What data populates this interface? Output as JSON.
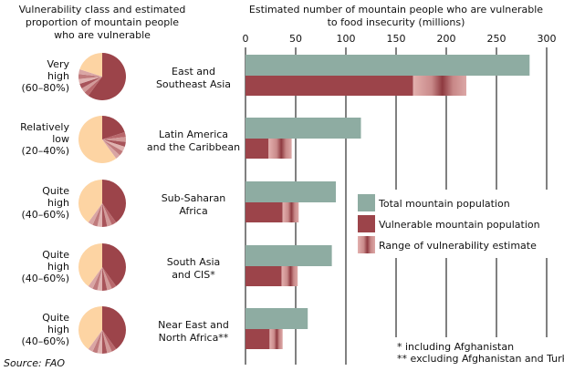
{
  "chart_data": {
    "type": "bar",
    "title_left": [
      "Vulnerability class and estimated",
      "proportion of mountain people",
      "who are vulnerable"
    ],
    "title": [
      "Estimated number of mountain people who are vulnerable",
      "to food insecurity (millions)"
    ],
    "xlim": [
      0,
      300
    ],
    "ticks": [
      "0",
      "50",
      "100",
      "150",
      "200",
      "250",
      "300"
    ],
    "categories": [
      {
        "region": [
          "East and",
          "Southeast Asia"
        ],
        "class": [
          "Very",
          "high",
          "(60–80%)"
        ],
        "total": 283,
        "vulnerable": 167,
        "range_max": 220,
        "pie_low": 0.6,
        "pie_high": 0.8
      },
      {
        "region": [
          "Latin America",
          "and the Caribbean"
        ],
        "class": [
          "Relatively",
          "low",
          "(20–40%)"
        ],
        "total": 115,
        "vulnerable": 23,
        "range_max": 46,
        "pie_low": 0.2,
        "pie_high": 0.4
      },
      {
        "region": [
          "Sub-Saharan",
          "Africa"
        ],
        "class": [
          "Quite",
          "high",
          "(40–60%)"
        ],
        "total": 90,
        "vulnerable": 37,
        "range_max": 53,
        "pie_low": 0.4,
        "pie_high": 0.6
      },
      {
        "region": [
          "South Asia",
          "and CIS*"
        ],
        "class": [
          "Quite",
          "high",
          "(40–60%)"
        ],
        "total": 86,
        "vulnerable": 36,
        "range_max": 52,
        "pie_low": 0.4,
        "pie_high": 0.6
      },
      {
        "region": [
          "Near East and",
          "North Africa**"
        ],
        "class": [
          "Quite",
          "high",
          "(40–60%)"
        ],
        "total": 62,
        "vulnerable": 24,
        "range_max": 37,
        "pie_low": 0.4,
        "pie_high": 0.6
      }
    ],
    "legend": [
      "Total mountain population",
      "Vulnerable mountain population",
      "Range of vulnerability estimate"
    ],
    "legend_position": "center-right",
    "notes": [
      "* including Afghanistan",
      "** excluding Afghanistan and Turkey"
    ],
    "source": "Source: FAO",
    "colors": {
      "total": "#8eaca2",
      "vulnerable": "#9c444a",
      "range": "#d9a1a0",
      "pie_rest": "#fdd4a3"
    }
  }
}
